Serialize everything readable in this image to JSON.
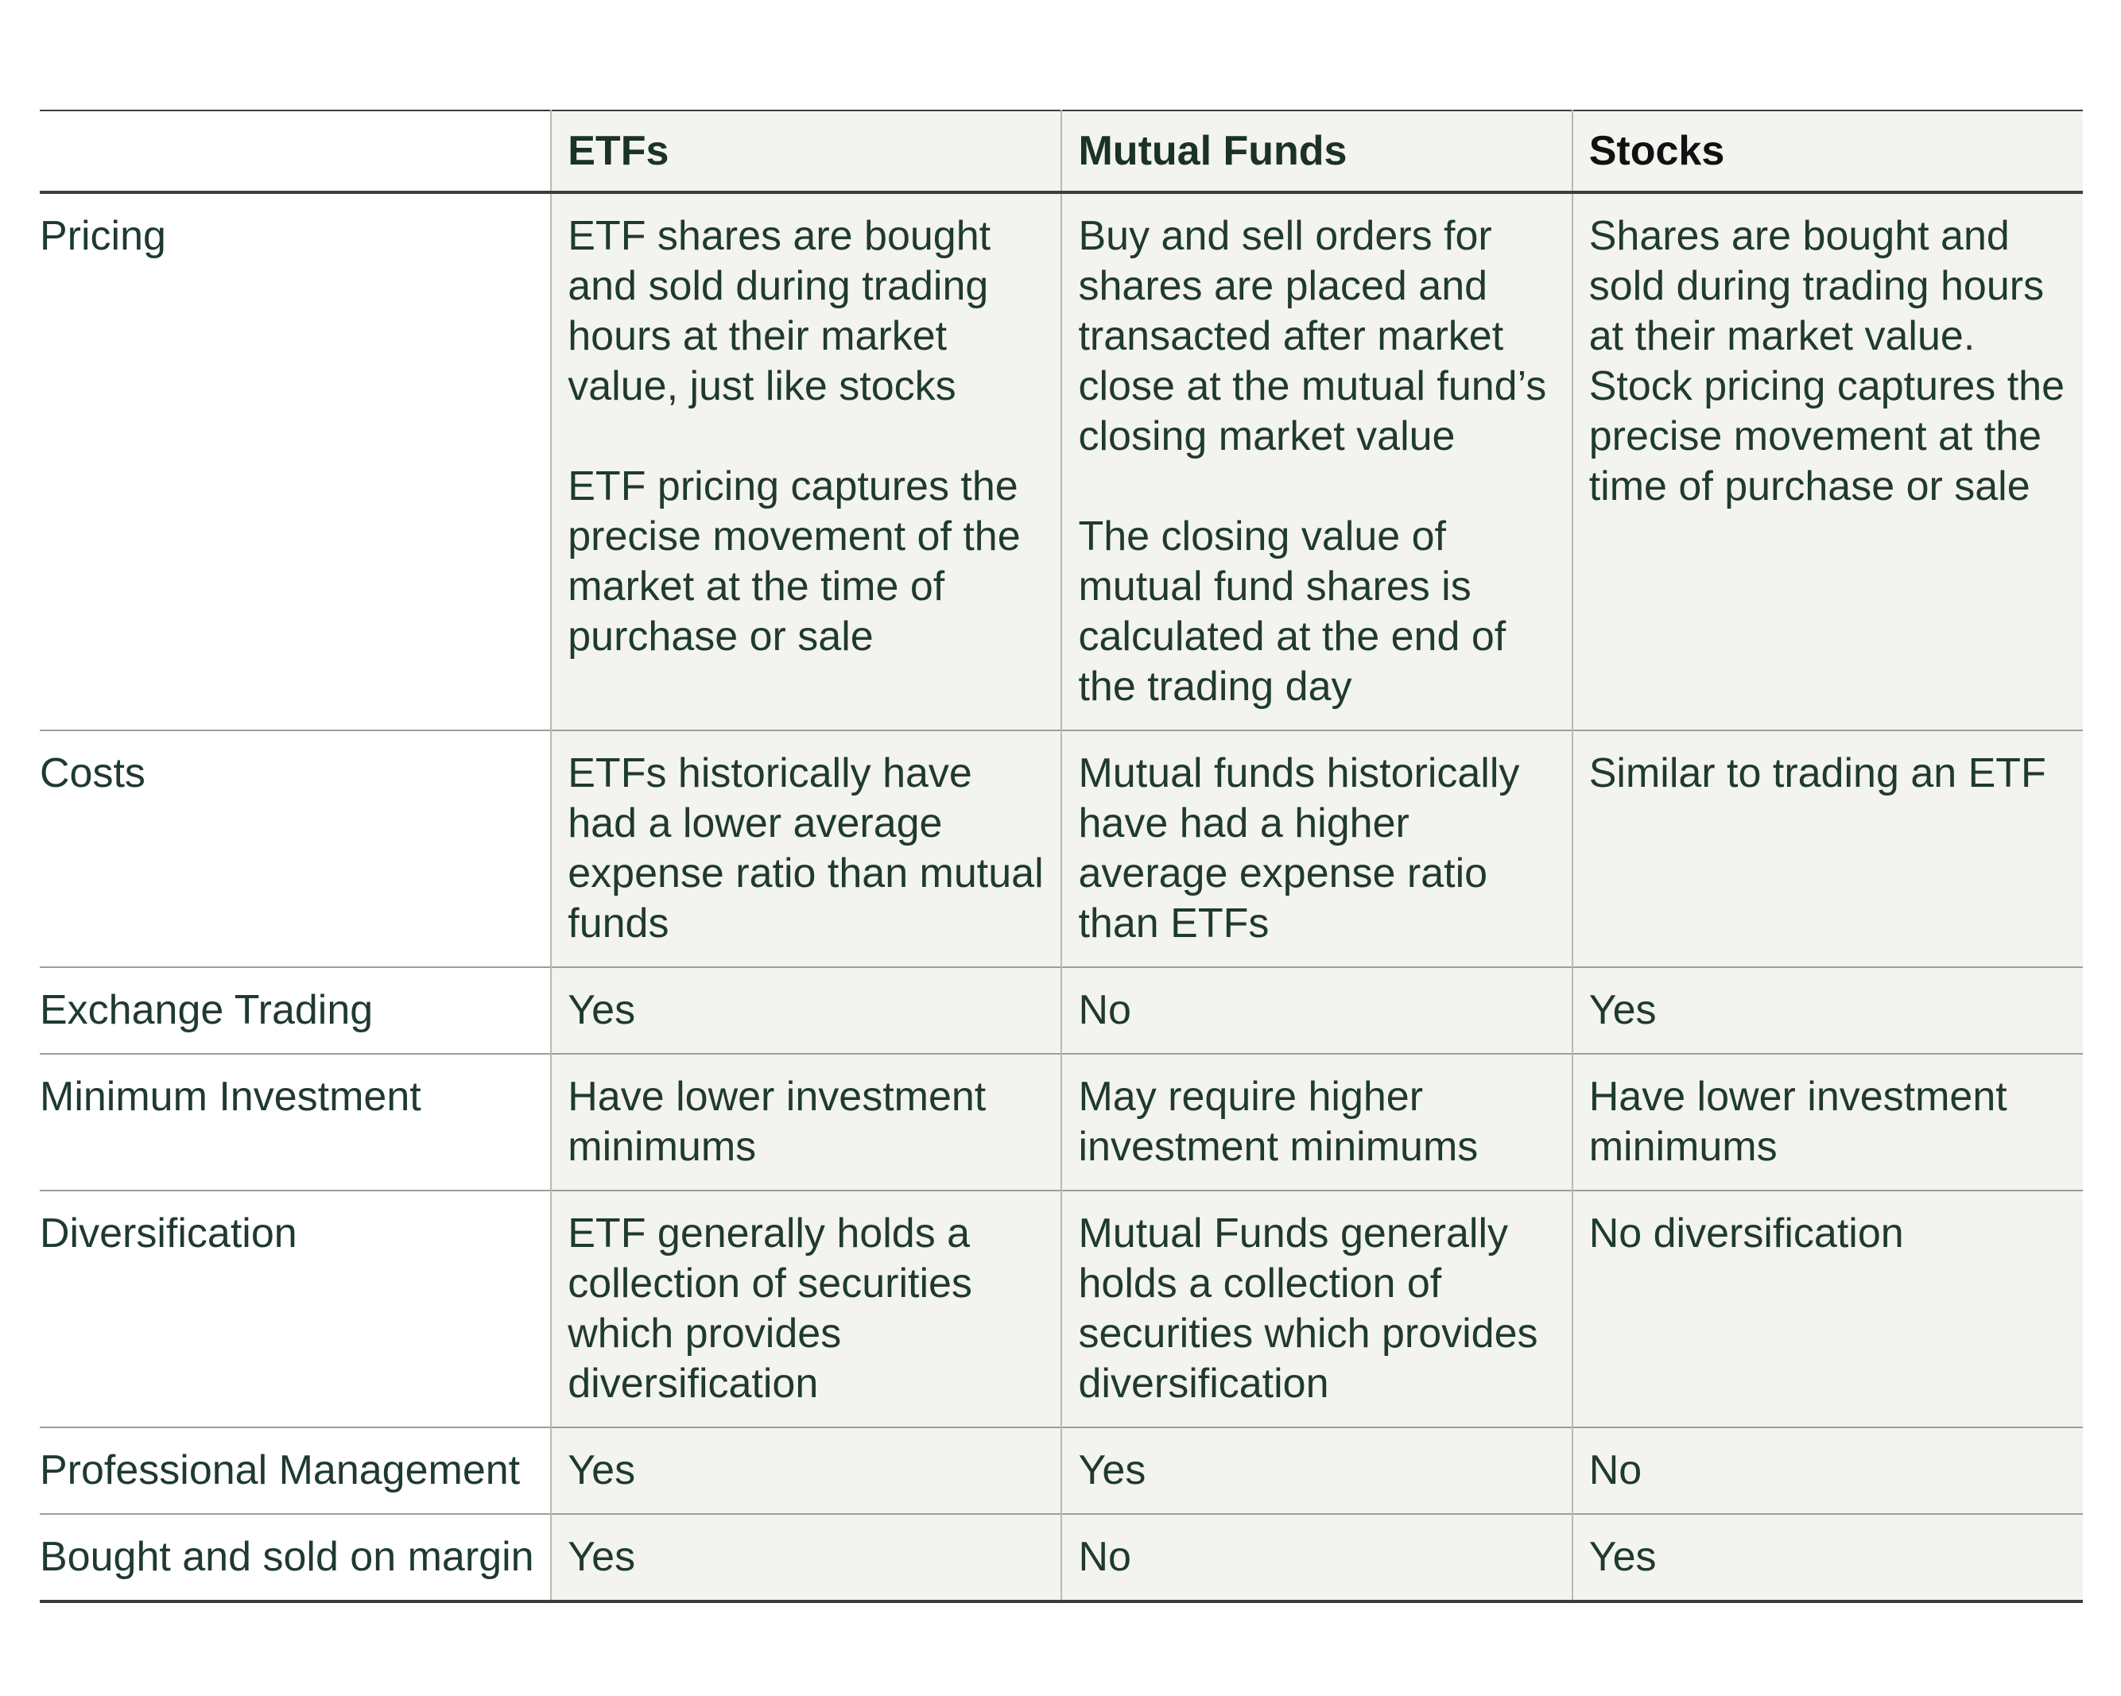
{
  "columns": {
    "corner": "",
    "etfs": "ETFs",
    "mutual_funds": "Mutual Funds",
    "stocks": "Stocks"
  },
  "rows": [
    {
      "label": "Pricing",
      "etfs": [
        "ETF shares are bought and sold during trading hours at their market value, just like stocks",
        "ETF pricing captures the precise movement of the market at the time of purchase or sale"
      ],
      "mutual_funds": [
        "Buy and sell orders for shares are placed and transacted after market close at the mutual fund’s closing market value",
        "The closing value of mutual fund shares is calculated at the end of the trading day"
      ],
      "stocks": [
        "Shares are bought and sold during trading hours at their market value. Stock pricing captures the precise movement at the time of purchase or sale"
      ]
    },
    {
      "label": "Costs",
      "etfs": [
        "ETFs historically have had a lower average expense ratio than mutual funds"
      ],
      "mutual_funds": [
        "Mutual funds historically have had a higher average expense ratio than ETFs"
      ],
      "stocks": [
        "Similar to trading an ETF"
      ]
    },
    {
      "label": "Exchange Trading",
      "etfs": [
        "Yes"
      ],
      "mutual_funds": [
        "No"
      ],
      "stocks": [
        "Yes"
      ]
    },
    {
      "label": "Minimum Investment",
      "etfs": [
        "Have lower investment minimums"
      ],
      "mutual_funds": [
        "May require higher investment minimums"
      ],
      "stocks": [
        "Have lower investment minimums"
      ]
    },
    {
      "label": "Diversification",
      "etfs": [
        "ETF generally holds a collection of securities which provides diversification"
      ],
      "mutual_funds": [
        "Mutual Funds generally holds a collection of securities which provides diversification"
      ],
      "stocks": [
        "No diversification"
      ]
    },
    {
      "label": "Professional Management",
      "etfs": [
        "Yes"
      ],
      "mutual_funds": [
        "Yes"
      ],
      "stocks": [
        "No"
      ]
    },
    {
      "label": "Bought and sold on margin",
      "etfs": [
        "Yes"
      ],
      "mutual_funds": [
        "No"
      ],
      "stocks": [
        "Yes"
      ]
    }
  ]
}
